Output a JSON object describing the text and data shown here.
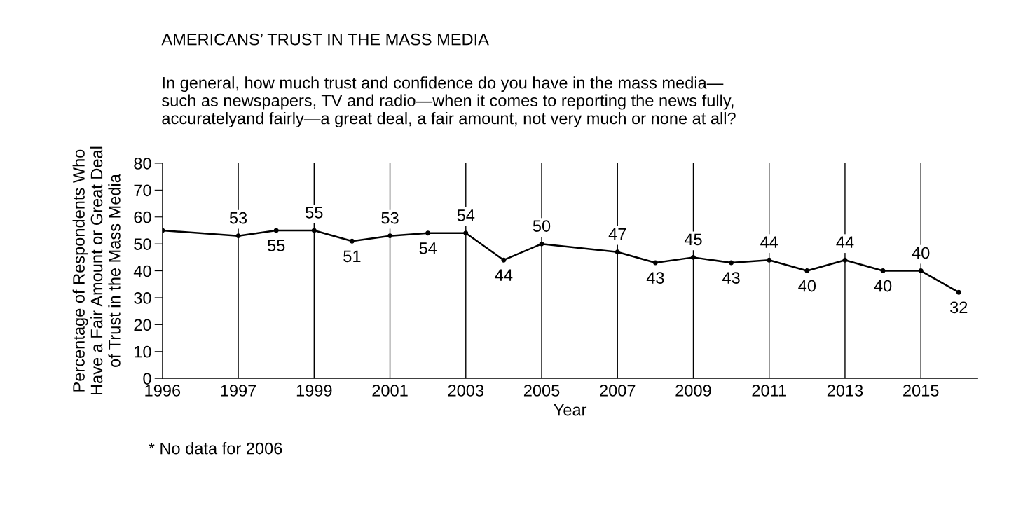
{
  "chart_data": {
    "type": "line",
    "title": "AMERICANS’ TRUST IN THE MASS MEDIA",
    "subtitle": "In general, how much trust and confidence do you have in the mass media—\nsuch as newspapers, TV and radio—when it comes to reporting the news fully,\naccuratelyand fairly—a great deal, a fair amount, not very much or none at all?",
    "xlabel": "Year",
    "ylabel": "Percentage of Respondents Who\nHave a Fair Amount or Great Deal\nof Trust in the Mass Media",
    "annotations": [
      "* No data for 2006"
    ],
    "categories": [
      "1996",
      null,
      "1997",
      null,
      "1999",
      null,
      "2001",
      null,
      "2003",
      null,
      "2005",
      null,
      "2007",
      null,
      "2009",
      null,
      "2011",
      null,
      "2013",
      null,
      "2015",
      null
    ],
    "series": [
      {
        "color": "#000000",
        "values": [
          55,
          null,
          53,
          55,
          55,
          51,
          53,
          54,
          54,
          44,
          50,
          null,
          47,
          43,
          45,
          43,
          44,
          40,
          44,
          40,
          40,
          32
        ],
        "value_labels": [
          null,
          null,
          "53",
          "55",
          "55",
          "51",
          "53",
          "54",
          "54",
          "44",
          "50",
          null,
          "47",
          "43",
          "45",
          "43",
          "44",
          "40",
          "44",
          "40",
          "40",
          "32"
        ]
      }
    ],
    "ylim": [
      0,
      80
    ],
    "yticks": [
      0,
      10,
      20,
      30,
      40,
      50,
      60,
      70,
      80
    ],
    "grid": "x",
    "marker": "circle",
    "line_style": "solid",
    "legend": false
  }
}
